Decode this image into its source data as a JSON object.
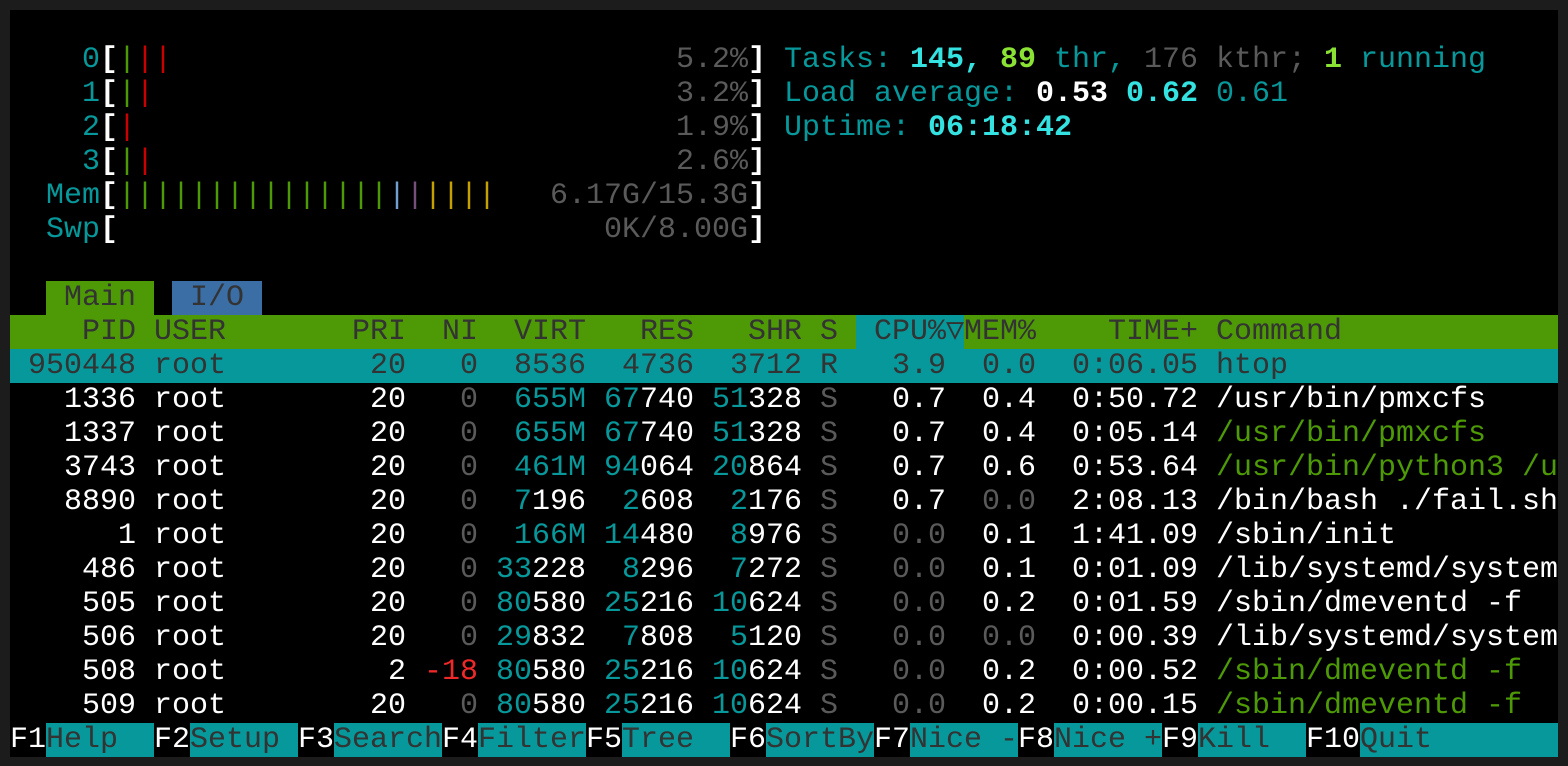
{
  "colors": {
    "header_bg": "#4e9a06",
    "selection_bg": "#06989a",
    "tab_io_bg": "#3a6ea5",
    "cpu_green": "#4e9a06",
    "cpu_red": "#cc0000",
    "mem_used": "#4e9a06",
    "mem_buffers": "#729fcf",
    "mem_shared": "#75507b",
    "mem_cache": "#c4a000"
  },
  "meters": {
    "cpus": [
      {
        "label": "0",
        "bars": [
          "green",
          "red",
          "red"
        ],
        "value": "5.2%"
      },
      {
        "label": "1",
        "bars": [
          "green",
          "red"
        ],
        "value": "3.2%"
      },
      {
        "label": "2",
        "bars": [
          "red"
        ],
        "value": "1.9%"
      },
      {
        "label": "3",
        "bars": [
          "green",
          "red"
        ],
        "value": "2.6%"
      }
    ],
    "mem": {
      "label": "Mem",
      "bars": {
        "used": 15,
        "buffers": 1,
        "shared": 1,
        "cache": 4
      },
      "value": "6.17G/15.3G"
    },
    "swap": {
      "label": "Swp",
      "value": "0K/8.00G"
    }
  },
  "summary": {
    "tasks_label": "Tasks: ",
    "tasks": "145",
    "thr": "89",
    "thr_label": " thr, ",
    "kthr": "176",
    "kthr_label": " kthr; ",
    "running": "1",
    "running_label": " running",
    "load_label": "Load average: ",
    "load1": "0.53",
    "load5": "0.62",
    "load15": "0.61",
    "uptime_label": "Uptime: ",
    "uptime": "06:18:42"
  },
  "tabs": [
    {
      "label": "Main",
      "active": true
    },
    {
      "label": "I/O",
      "active": false
    }
  ],
  "columns": [
    "PID",
    "USER",
    "PRI",
    "NI",
    "VIRT",
    "RES",
    "SHR",
    "S",
    "CPU%",
    "▽",
    "MEM%",
    "TIME+",
    "Command"
  ],
  "sort_column": "CPU%",
  "processes": [
    {
      "pid": "950448",
      "user": "root",
      "pri": "20",
      "ni": "0",
      "virt": "8536",
      "res": "4736",
      "shr": "3712",
      "s": "R",
      "cpu": "3.9",
      "mem": "0.0",
      "time": "0:06.05",
      "cmd": "htop",
      "selected": true
    },
    {
      "pid": "1336",
      "user": "root",
      "pri": "20",
      "ni": "0",
      "virt": "655M",
      "res": "67740",
      "shr": "51328",
      "s": "S",
      "cpu": "0.7",
      "mem": "0.4",
      "time": "0:50.72",
      "cmd": "/usr/bin/pmxcfs"
    },
    {
      "pid": "1337",
      "user": "root",
      "pri": "20",
      "ni": "0",
      "virt": "655M",
      "res": "67740",
      "shr": "51328",
      "s": "S",
      "cpu": "0.7",
      "mem": "0.4",
      "time": "0:05.14",
      "cmd": "/usr/bin/pmxcfs",
      "thread": true
    },
    {
      "pid": "3743",
      "user": "root",
      "pri": "20",
      "ni": "0",
      "virt": "461M",
      "res": "94064",
      "shr": "20864",
      "s": "S",
      "cpu": "0.7",
      "mem": "0.6",
      "time": "0:53.64",
      "cmd": "/usr/bin/python3 /u",
      "thread": true
    },
    {
      "pid": "8890",
      "user": "root",
      "pri": "20",
      "ni": "0",
      "virt": "7196",
      "res": "2608",
      "shr": "2176",
      "s": "S",
      "cpu": "0.7",
      "mem": "0.0",
      "time": "2:08.13",
      "cmd": "/bin/bash ./fail.sh"
    },
    {
      "pid": "1",
      "user": "root",
      "pri": "20",
      "ni": "0",
      "virt": "166M",
      "res": "14480",
      "shr": "8976",
      "s": "S",
      "cpu": "0.0",
      "mem": "0.1",
      "time": "1:41.09",
      "cmd": "/sbin/init"
    },
    {
      "pid": "486",
      "user": "root",
      "pri": "20",
      "ni": "0",
      "virt": "33228",
      "res": "8296",
      "shr": "7272",
      "s": "S",
      "cpu": "0.0",
      "mem": "0.1",
      "time": "0:01.09",
      "cmd": "/lib/systemd/system"
    },
    {
      "pid": "505",
      "user": "root",
      "pri": "20",
      "ni": "0",
      "virt": "80580",
      "res": "25216",
      "shr": "10624",
      "s": "S",
      "cpu": "0.0",
      "mem": "0.2",
      "time": "0:01.59",
      "cmd": "/sbin/dmeventd -f"
    },
    {
      "pid": "506",
      "user": "root",
      "pri": "20",
      "ni": "0",
      "virt": "29832",
      "res": "7808",
      "shr": "5120",
      "s": "S",
      "cpu": "0.0",
      "mem": "0.0",
      "time": "0:00.39",
      "cmd": "/lib/systemd/system"
    },
    {
      "pid": "508",
      "user": "root",
      "pri": "2",
      "ni": "-18",
      "virt": "80580",
      "res": "25216",
      "shr": "10624",
      "s": "S",
      "cpu": "0.0",
      "mem": "0.2",
      "time": "0:00.52",
      "cmd": "/sbin/dmeventd -f",
      "thread": true
    },
    {
      "pid": "509",
      "user": "root",
      "pri": "20",
      "ni": "0",
      "virt": "80580",
      "res": "25216",
      "shr": "10624",
      "s": "S",
      "cpu": "0.0",
      "mem": "0.2",
      "time": "0:00.15",
      "cmd": "/sbin/dmeventd -f",
      "thread": true
    }
  ],
  "footer": [
    {
      "key": "F1",
      "label": "Help  "
    },
    {
      "key": "F2",
      "label": "Setup "
    },
    {
      "key": "F3",
      "label": "Search"
    },
    {
      "key": "F4",
      "label": "Filter"
    },
    {
      "key": "F5",
      "label": "Tree  "
    },
    {
      "key": "F6",
      "label": "SortBy"
    },
    {
      "key": "F7",
      "label": "Nice -"
    },
    {
      "key": "F8",
      "label": "Nice +"
    },
    {
      "key": "F9",
      "label": "Kill  "
    },
    {
      "key": "F10",
      "label": "Quit"
    }
  ]
}
